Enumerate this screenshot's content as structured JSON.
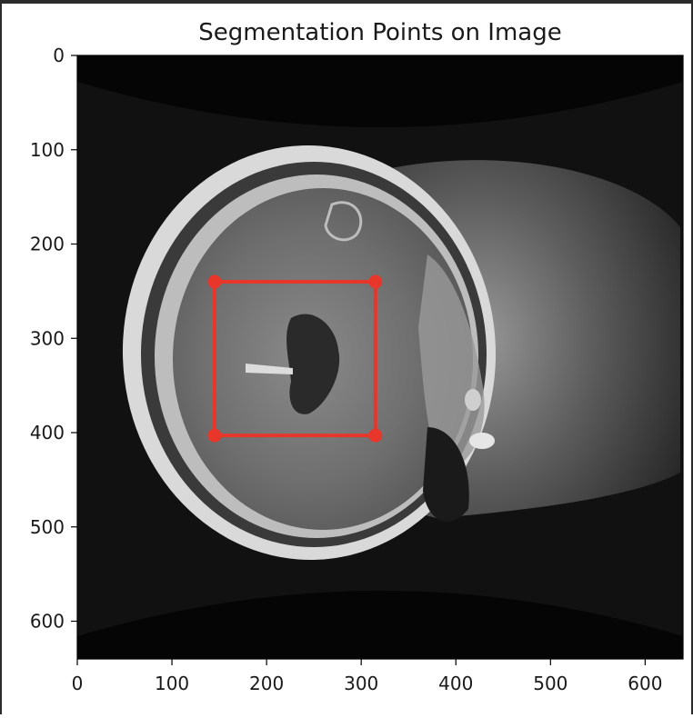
{
  "chart_data": {
    "type": "scatter",
    "title": "Segmentation Points on Image",
    "xlabel": "",
    "ylabel": "",
    "xlim": [
      0,
      640
    ],
    "ylim": [
      640,
      0
    ],
    "x_ticks": [
      0,
      100,
      200,
      300,
      400,
      500,
      600
    ],
    "y_ticks": [
      0,
      100,
      200,
      300,
      400,
      500,
      600
    ],
    "background": "grayscale axial head MRI image",
    "grid": false,
    "series": [
      {
        "values": [
          {
            "x": 145,
            "y": 240
          },
          {
            "x": 315,
            "y": 240
          },
          {
            "x": 315,
            "y": 403
          },
          {
            "x": 145,
            "y": 403
          }
        ],
        "closed_polygon": true,
        "color": "#e8362b"
      }
    ]
  }
}
